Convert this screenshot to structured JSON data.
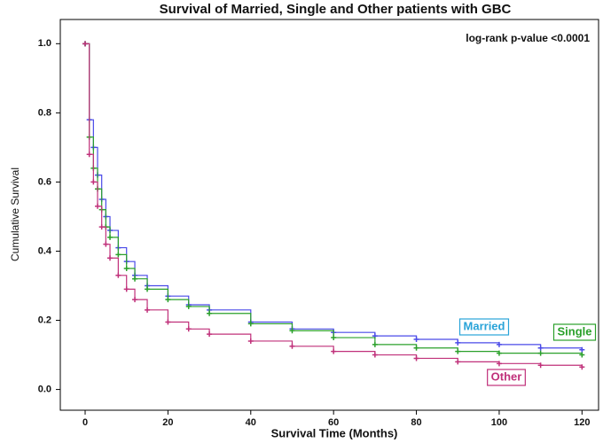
{
  "chart_data": {
    "type": "line",
    "step": true,
    "title": "Survival of Married, Single and Other patients with GBC",
    "annotation": "log-rank p-value <0.0001",
    "x_label": "Survival Time (Months)",
    "y_label": "Cumulative Survival",
    "x": [
      0,
      1,
      2,
      3,
      4,
      5,
      6,
      8,
      10,
      12,
      15,
      20,
      25,
      30,
      40,
      50,
      60,
      70,
      80,
      90,
      100,
      110,
      120
    ],
    "series": [
      {
        "name": "Married",
        "color": "#4a4ae8",
        "label_color": "#29a3d8",
        "values": [
          1.0,
          0.78,
          0.7,
          0.62,
          0.55,
          0.5,
          0.46,
          0.41,
          0.37,
          0.33,
          0.3,
          0.27,
          0.245,
          0.23,
          0.195,
          0.175,
          0.165,
          0.155,
          0.145,
          0.135,
          0.13,
          0.12,
          0.115
        ]
      },
      {
        "name": "Single",
        "color": "#2aa02a",
        "label_color": "#2aa02a",
        "values": [
          1.0,
          0.73,
          0.64,
          0.58,
          0.52,
          0.47,
          0.44,
          0.39,
          0.35,
          0.32,
          0.29,
          0.26,
          0.24,
          0.22,
          0.19,
          0.17,
          0.15,
          0.13,
          0.12,
          0.11,
          0.105,
          0.105,
          0.1
        ]
      },
      {
        "name": "Other",
        "color": "#c0307a",
        "label_color": "#c0307a",
        "values": [
          1.0,
          0.68,
          0.6,
          0.53,
          0.47,
          0.42,
          0.38,
          0.33,
          0.29,
          0.26,
          0.23,
          0.195,
          0.175,
          0.16,
          0.14,
          0.125,
          0.11,
          0.1,
          0.09,
          0.08,
          0.075,
          0.07,
          0.065
        ]
      }
    ],
    "xlim": [
      -6,
      124
    ],
    "ylim": [
      -0.06,
      1.07
    ],
    "xticks": [
      0,
      20,
      40,
      60,
      80,
      100,
      120
    ],
    "yticks": [
      {
        "value": 0,
        "label": "0.0"
      },
      {
        "value": 0.2,
        "label": "0.2"
      },
      {
        "value": 0.4,
        "label": "0.4"
      },
      {
        "value": 0.6,
        "label": "0.6"
      },
      {
        "value": 0.8,
        "label": "0.8"
      },
      {
        "value": 1,
        "label": "1.0"
      }
    ]
  }
}
